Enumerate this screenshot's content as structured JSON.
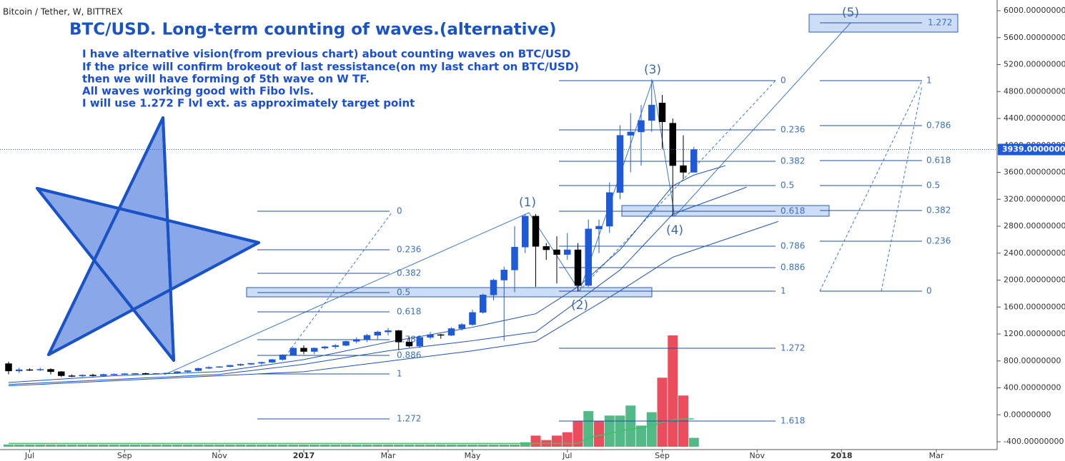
{
  "chart_data": {
    "type": "candlestick",
    "symbol_label": "Bitcoin / Tether, W, BITTREX",
    "title": "BTC/USD. Long-term counting of waves.(alternative)",
    "description": [
      "I have alternative vision(from previous chart) about counting waves on BTC/USD",
      "If the price will confirm brokeout of last ressistance(on my last chart on BTC/USD)",
      "then we will have forming of 5th wave on W TF.",
      "All waves working good with Fibo lvls.",
      "I will use 1.272 F lvl ext. as approximately target point"
    ],
    "categories": [
      null,
      null,
      "Jul",
      null,
      null,
      null,
      null,
      null,
      null,
      null,
      null,
      "Sep",
      null,
      null,
      null,
      null,
      null,
      null,
      null,
      null,
      "Nov",
      null,
      null,
      null,
      null,
      null,
      null,
      null,
      "2017",
      null,
      null,
      null,
      null,
      null,
      null,
      null,
      "Mar",
      null,
      null,
      null,
      null,
      null,
      null,
      null,
      "May",
      null,
      null,
      null,
      null,
      null,
      null,
      null,
      null,
      "Jul",
      null,
      null,
      null,
      null,
      null,
      null,
      null,
      null,
      "Sep",
      null,
      null,
      null,
      null,
      null,
      null,
      null,
      null,
      "Nov",
      null,
      null,
      null,
      null,
      null,
      null,
      null,
      "2018",
      null,
      null,
      null,
      null,
      null,
      null,
      null,
      null,
      "Mar",
      null,
      null,
      null,
      null,
      null
    ],
    "open": [
      760,
      650,
      670,
      665,
      675,
      640,
      580,
      575,
      590,
      580,
      600,
      605,
      610,
      615,
      605,
      615,
      620,
      640,
      655,
      690,
      705,
      715,
      735,
      750,
      765,
      780,
      820,
      890,
      990,
      940,
      990,
      1010,
      1030,
      1090,
      1120,
      1180,
      1230,
      1250,
      1080,
      1020,
      1150,
      1190,
      1180,
      1280,
      1340,
      1520,
      1780,
      2000,
      2150,
      2490,
      2950,
      2500,
      2450,
      2380,
      2450,
      1920,
      2760,
      2800,
      3300,
      4150,
      4200,
      4370,
      4630,
      4330,
      3700,
      3600,
      null,
      null,
      null,
      null,
      null,
      null,
      null,
      null,
      null,
      null,
      null,
      null,
      null,
      null,
      null,
      null,
      null,
      null,
      null,
      null,
      null,
      null,
      null,
      null,
      null,
      null,
      null,
      null
    ],
    "high": [
      790,
      700,
      690,
      700,
      690,
      650,
      600,
      600,
      610,
      610,
      615,
      620,
      620,
      625,
      620,
      625,
      650,
      660,
      700,
      720,
      720,
      740,
      760,
      770,
      790,
      830,
      900,
      1000,
      1030,
      1000,
      1020,
      1050,
      1100,
      1150,
      1200,
      1250,
      1290,
      1260,
      1150,
      1180,
      1230,
      1200,
      1300,
      1360,
      1560,
      1800,
      2020,
      2200,
      2800,
      2980,
      2980,
      2550,
      2650,
      2700,
      2550,
      2900,
      2900,
      3450,
      4300,
      4480,
      4600,
      4980,
      4750,
      4400,
      4150,
      3980,
      null,
      null,
      null,
      null,
      null,
      null,
      null,
      null,
      null,
      null,
      null,
      null,
      null,
      null,
      null,
      null,
      null,
      null,
      null,
      null,
      null,
      null,
      null,
      null,
      null,
      null,
      null,
      null
    ],
    "low": [
      600,
      620,
      650,
      650,
      600,
      560,
      560,
      560,
      570,
      570,
      590,
      595,
      600,
      600,
      600,
      605,
      610,
      630,
      645,
      680,
      700,
      705,
      725,
      740,
      740,
      770,
      810,
      880,
      900,
      900,
      970,
      980,
      1020,
      1060,
      1080,
      1120,
      1180,
      960,
      1000,
      990,
      1120,
      1130,
      1170,
      1250,
      1320,
      1500,
      1700,
      1100,
      1820,
      2400,
      1900,
      2300,
      1950,
      2300,
      1830,
      1900,
      2400,
      2700,
      3200,
      3600,
      3700,
      4200,
      3950,
      2950,
      3500,
      3600,
      null,
      null,
      null,
      null,
      null,
      null,
      null,
      null,
      null,
      null,
      null,
      null,
      null,
      null,
      null,
      null,
      null,
      null,
      null,
      null,
      null,
      null,
      null,
      null,
      null,
      null,
      null,
      null
    ],
    "close": [
      650,
      670,
      665,
      675,
      640,
      580,
      575,
      590,
      580,
      600,
      605,
      610,
      615,
      605,
      615,
      620,
      640,
      655,
      690,
      705,
      715,
      735,
      750,
      765,
      780,
      820,
      890,
      990,
      940,
      990,
      1010,
      1030,
      1090,
      1120,
      1180,
      1230,
      1250,
      1080,
      1020,
      1150,
      1190,
      1180,
      1280,
      1340,
      1520,
      1780,
      2000,
      2150,
      2490,
      2950,
      2500,
      2450,
      2380,
      2450,
      1920,
      2760,
      2800,
      3300,
      4150,
      4200,
      4370,
      4600,
      4350,
      3700,
      3600,
      3939,
      null,
      null,
      null,
      null,
      null,
      null,
      null,
      null,
      null,
      null,
      null,
      null,
      null,
      null,
      null,
      null,
      null,
      null,
      null,
      null,
      null,
      null,
      null,
      null,
      null,
      null,
      null,
      null
    ],
    "up_color": "#1e5ad6",
    "down_color": "#000000",
    "indicators": [
      {
        "color": "#1f52b4",
        "values": [
          480,
          490,
          500,
          510,
          520,
          530,
          540,
          550,
          560,
          570,
          580,
          586,
          592,
          598,
          604,
          610,
          616,
          622,
          628,
          634,
          640,
          662,
          685,
          707,
          730,
          752,
          775,
          797,
          820,
          852,
          885,
          917,
          950,
          982,
          1015,
          1047,
          1080,
          1107,
          1135,
          1162,
          1190,
          1217,
          1245,
          1272,
          1300,
          1333,
          1367,
          1400,
          1433,
          1467,
          1500,
          1600,
          1700,
          1800,
          1900,
          2037,
          2175,
          2312,
          2450,
          2640,
          2830,
          3020,
          3210,
          3400,
          3480,
          3560,
          3607,
          3653,
          3700,
          null,
          null,
          null,
          null,
          null,
          null,
          null,
          null,
          null,
          null,
          null,
          null,
          null,
          null,
          null,
          null,
          null,
          null,
          null,
          null,
          null,
          null,
          null,
          null,
          null,
          null
        ]
      },
      {
        "color": "#1f52b4",
        "values": [
          450,
          458,
          465,
          472,
          480,
          488,
          495,
          502,
          510,
          518,
          525,
          532,
          540,
          548,
          555,
          562,
          570,
          578,
          585,
          592,
          600,
          619,
          638,
          656,
          675,
          694,
          712,
          731,
          750,
          775,
          800,
          825,
          850,
          875,
          900,
          925,
          950,
          969,
          988,
          1006,
          1025,
          1044,
          1062,
          1081,
          1100,
          1122,
          1143,
          1165,
          1187,
          1208,
          1230,
          1345,
          1460,
          1575,
          1690,
          1805,
          1920,
          2035,
          2150,
          2316,
          2482,
          2648,
          2814,
          2980,
          3037,
          3094,
          3151,
          3208,
          3265,
          3322,
          3380,
          null,
          null,
          null,
          null,
          null,
          null,
          null,
          null,
          null,
          null,
          null,
          null,
          null,
          null,
          null,
          null,
          null,
          null,
          null,
          null,
          null,
          null
        ]
      },
      {
        "color": "#1f52b4",
        "values": [
          430,
          438,
          445,
          452,
          460,
          468,
          475,
          482,
          490,
          498,
          505,
          512,
          520,
          528,
          535,
          542,
          550,
          558,
          565,
          572,
          580,
          588,
          595,
          602,
          610,
          618,
          625,
          632,
          640,
          659,
          678,
          698,
          717,
          736,
          756,
          775,
          795,
          814,
          834,
          853,
          872,
          892,
          911,
          930,
          950,
          973,
          997,
          1020,
          1043,
          1067,
          1090,
          1184,
          1278,
          1371,
          1465,
          1559,
          1652,
          1746,
          1840,
          1940,
          2040,
          2140,
          2240,
          2340,
          2393,
          2446,
          2499,
          2552,
          2605,
          2658,
          2711,
          2764,
          2817,
          2870,
          null,
          null,
          null,
          null,
          null,
          null,
          null,
          null,
          null,
          null,
          null,
          null,
          null,
          null,
          null,
          null,
          null,
          null,
          null,
          null
        ]
      }
    ],
    "volume": [
      2,
      2,
      2,
      2,
      2,
      2,
      2,
      2,
      2,
      2,
      2,
      2,
      2,
      2,
      2,
      2,
      2,
      2,
      2,
      2,
      2,
      2,
      2,
      2,
      2,
      2,
      2,
      2,
      2,
      2,
      2,
      2,
      2,
      2,
      2,
      2,
      2,
      2,
      2,
      2,
      2,
      2,
      2,
      2,
      2,
      2,
      2,
      2,
      2,
      4,
      10,
      6,
      10,
      13,
      23,
      32,
      23,
      28,
      28,
      37,
      19,
      31,
      62,
      100,
      46,
      8,
      null,
      null,
      null,
      null,
      null,
      null,
      null,
      null,
      null,
      null,
      null,
      null,
      null,
      null,
      null,
      null,
      null,
      null,
      null,
      null,
      null,
      null,
      null,
      null,
      null,
      null,
      null,
      null
    ],
    "volume_colors": [
      "#53b987",
      "#53b987",
      "#53b987",
      "#53b987",
      "#53b987",
      "#53b987",
      "#53b987",
      "#53b987",
      "#53b987",
      "#53b987",
      "#53b987",
      "#53b987",
      "#53b987",
      "#53b987",
      "#53b987",
      "#53b987",
      "#53b987",
      "#53b987",
      "#53b987",
      "#53b987",
      "#53b987",
      "#53b987",
      "#53b987",
      "#53b987",
      "#53b987",
      "#53b987",
      "#53b987",
      "#53b987",
      "#53b987",
      "#53b987",
      "#53b987",
      "#53b987",
      "#53b987",
      "#53b987",
      "#53b987",
      "#53b987",
      "#53b987",
      "#53b987",
      "#53b987",
      "#53b987",
      "#53b987",
      "#53b987",
      "#53b987",
      "#53b987",
      "#53b987",
      "#53b987",
      "#53b987",
      "#53b987",
      "#53b987",
      "#53b987",
      "#eb4d5c",
      "#eb4d5c",
      "#eb4d5c",
      "#eb4d5c",
      "#eb4d5c",
      "#53b987",
      "#eb4d5c",
      "#53b987",
      "#53b987",
      "#53b987",
      "#53b987",
      "#53b987",
      "#eb4d5c",
      "#eb4d5c",
      "#eb4d5c",
      "#53b987",
      null,
      null,
      null,
      null,
      null,
      null,
      null,
      null,
      null,
      null,
      null,
      null,
      null,
      null,
      null,
      null,
      null,
      null,
      null,
      null,
      null,
      null,
      null,
      null,
      null,
      null,
      null,
      null
    ],
    "volume_ma": [
      3,
      3,
      3,
      3,
      3,
      3,
      3,
      3,
      3,
      3,
      3,
      3,
      3,
      3,
      3,
      3,
      3,
      3,
      3,
      3,
      3,
      3,
      3,
      3,
      3,
      3,
      3,
      3,
      3,
      3,
      3,
      3,
      3,
      3,
      3,
      3,
      3,
      3,
      3,
      3,
      3,
      3,
      3,
      3,
      3,
      3,
      3,
      3,
      3,
      3,
      3,
      3,
      3,
      3,
      3,
      8,
      10,
      12,
      14,
      16,
      17,
      19,
      22,
      24,
      25,
      25,
      null,
      null,
      null,
      null,
      null,
      null,
      null,
      null,
      null,
      null,
      null,
      null,
      null,
      null,
      null,
      null,
      null,
      null,
      null,
      null,
      null,
      null,
      null,
      null,
      null,
      null,
      null,
      null
    ],
    "volume_ma_color": "#3cc26a",
    "ylim": [
      -400,
      6000
    ],
    "yticks": [
      {
        "value": 6000,
        "label": "6000.00000000"
      },
      {
        "value": 5600,
        "label": "5600.00000000"
      },
      {
        "value": 5200,
        "label": "5200.00000000"
      },
      {
        "value": 4800,
        "label": "4800.00000000"
      },
      {
        "value": 4400,
        "label": "4400.00000000"
      },
      {
        "value": 4000,
        "label": "4000.00000000"
      },
      {
        "value": 3600,
        "label": "3600.00000000"
      },
      {
        "value": 3200,
        "label": "3200.00000000"
      },
      {
        "value": 2800,
        "label": "2800.00000000"
      },
      {
        "value": 2400,
        "label": "2400.00000000"
      },
      {
        "value": 2000,
        "label": "2000.00000000"
      },
      {
        "value": 1600,
        "label": "1600.00000000"
      },
      {
        "value": 1200,
        "label": "1200.00000000"
      },
      {
        "value": 800,
        "label": "800.00000000"
      },
      {
        "value": 400,
        "label": "400.00000000"
      },
      {
        "value": 0,
        "label": "0.00000000"
      },
      {
        "value": -400,
        "label": "-400.00000000"
      }
    ],
    "last_price": {
      "value": 3939,
      "label": "3939.00000000"
    },
    "fibs": [
      {
        "levels": [
          0,
          0.236,
          0.382,
          0.5,
          0.618,
          0.786,
          0.886,
          1,
          1.272
        ]
      },
      {
        "levels": [
          0,
          0.236,
          0.382,
          0.5,
          0.618,
          0.786,
          0.886,
          1,
          1.272,
          1.618
        ]
      },
      {
        "levels": [
          1,
          0.786,
          0.618,
          0.5,
          0.382,
          0.236,
          0
        ]
      },
      {
        "levels": [
          1.272
        ]
      }
    ],
    "waves": [
      "(1)",
      "(2)",
      "(3)",
      "(4)",
      "(5)"
    ]
  }
}
